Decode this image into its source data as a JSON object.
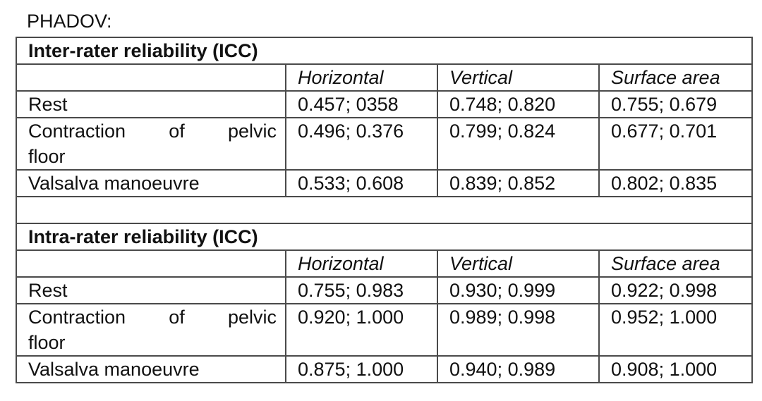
{
  "title": "PHADOV:",
  "sections": [
    {
      "heading": "Inter-rater reliability (ICC)",
      "columns": [
        "Horizontal",
        "Vertical",
        "Surface area"
      ],
      "rows": [
        {
          "label": "Rest",
          "label_line2": "",
          "values": [
            "0.457; 0358",
            "0.748; 0.820",
            "0.755; 0.679"
          ]
        },
        {
          "label": "Contraction of pelvic",
          "label_line2": "floor",
          "values": [
            "0.496; 0.376",
            "0.799; 0.824",
            "0.677; 0.701"
          ]
        },
        {
          "label": "Valsalva manoeuvre",
          "label_line2": "",
          "values": [
            "0.533; 0.608",
            "0.839; 0.852",
            "0.802; 0.835"
          ]
        }
      ]
    },
    {
      "heading": "Intra-rater reliability (ICC)",
      "columns": [
        "Horizontal",
        "Vertical",
        "Surface area"
      ],
      "rows": [
        {
          "label": "Rest",
          "label_line2": "",
          "values": [
            "0.755; 0.983",
            "0.930; 0.999",
            "0.922; 0.998"
          ]
        },
        {
          "label": "Contraction of pelvic",
          "label_line2": "floor",
          "values": [
            "0.920; 1.000",
            "0.989; 0.998",
            "0.952; 1.000"
          ]
        },
        {
          "label": "Valsalva manoeuvre",
          "label_line2": "",
          "values": [
            "0.875; 1.000",
            "0.940; 0.989",
            "0.908; 1.000"
          ]
        }
      ]
    }
  ]
}
